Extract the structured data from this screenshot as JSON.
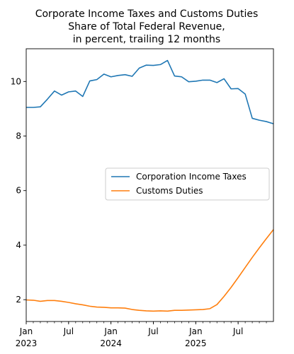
{
  "chart_data": {
    "type": "line",
    "title_lines": [
      "Corporate Income Taxes and Customs Duties",
      "Share of Total Federal Revenue,",
      "in percent, trailing 12 months"
    ],
    "xlabel": "",
    "ylabel": "",
    "xlim": [
      "2023-01",
      "2025-12"
    ],
    "ylim": [
      1.2,
      11.2
    ],
    "yticks": [
      2,
      4,
      6,
      8,
      10
    ],
    "x_major_ticks": [
      {
        "date": "2023-01",
        "label": "Jan",
        "year": "2023"
      },
      {
        "date": "2023-07",
        "label": "Jul",
        "year": ""
      },
      {
        "date": "2024-01",
        "label": "Jan",
        "year": "2024"
      },
      {
        "date": "2024-07",
        "label": "Jul",
        "year": ""
      },
      {
        "date": "2025-01",
        "label": "Jan",
        "year": "2025"
      },
      {
        "date": "2025-07",
        "label": "Jul",
        "year": ""
      }
    ],
    "grid": false,
    "legend_position": "center-right",
    "x": [
      "2023-01",
      "2023-02",
      "2023-03",
      "2023-04",
      "2023-05",
      "2023-06",
      "2023-07",
      "2023-08",
      "2023-09",
      "2023-10",
      "2023-11",
      "2023-12",
      "2024-01",
      "2024-02",
      "2024-03",
      "2024-04",
      "2024-05",
      "2024-06",
      "2024-07",
      "2024-08",
      "2024-09",
      "2024-10",
      "2024-11",
      "2024-12",
      "2025-01",
      "2025-02",
      "2025-03",
      "2025-04",
      "2025-05",
      "2025-06",
      "2025-07",
      "2025-08",
      "2025-09",
      "2025-10",
      "2025-11",
      "2025-12"
    ],
    "series": [
      {
        "name": "Corporation Income Taxes",
        "color": "#1f77b4",
        "values": [
          9.05,
          9.05,
          9.07,
          9.35,
          9.65,
          9.5,
          9.62,
          9.65,
          9.45,
          10.02,
          10.07,
          10.27,
          10.17,
          10.22,
          10.25,
          10.19,
          10.49,
          10.6,
          10.59,
          10.62,
          10.77,
          10.2,
          10.17,
          9.99,
          10.01,
          10.05,
          10.05,
          9.96,
          10.1,
          9.73,
          9.74,
          9.54,
          8.65,
          8.58,
          8.53,
          8.45
        ]
      },
      {
        "name": "Customs Duties",
        "color": "#ff7f0e",
        "values": [
          1.99,
          1.98,
          1.94,
          1.97,
          1.97,
          1.94,
          1.9,
          1.85,
          1.81,
          1.76,
          1.73,
          1.72,
          1.7,
          1.7,
          1.69,
          1.64,
          1.61,
          1.59,
          1.58,
          1.59,
          1.58,
          1.61,
          1.61,
          1.62,
          1.63,
          1.64,
          1.67,
          1.82,
          2.12,
          2.45,
          2.81,
          3.18,
          3.55,
          3.9,
          4.24,
          4.57
        ]
      }
    ]
  }
}
